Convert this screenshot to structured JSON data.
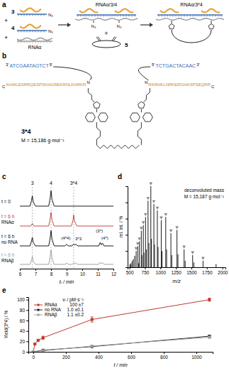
{
  "scheme": {
    "label": "a",
    "strand_3": "3",
    "strand_4": "4",
    "azide": "N₃",
    "plus": "+",
    "rna": "RNAα",
    "complex": "RNAα/3/4",
    "product": "RNAα/3*4",
    "crosslinker": "5"
  },
  "structure": {
    "label": "b",
    "dna_left": {
      "end_start": "3'",
      "sequence": "ATCGAATAGTCT",
      "end_stop": "5'"
    },
    "dna_right": {
      "end_start": "5'",
      "sequence": "TCTGACTACAAC",
      "end_stop": "3'"
    },
    "peptide_left": {
      "terminus_start": "C",
      "sequence": "AHWLESRRQESPSKHGREKRNLKHRKR",
      "terminus_stop": "N"
    },
    "peptide_right": {
      "terminus_start": "N",
      "sequence": "RKRHKLNRKERGHKSPSEQRR",
      "terminus_stop": "C"
    },
    "compound": "3*4",
    "mass": "M = 15,186 g·mol⁻¹"
  },
  "chart_data": [
    {
      "type": "line",
      "panel": "c",
      "x_label": "tᵣ / min",
      "xlim": [
        6,
        12
      ],
      "xticks": [
        6,
        7,
        8,
        9,
        10,
        11,
        12
      ],
      "ylim": [
        0,
        1
      ],
      "tick_labels": "x",
      "peak_markers": [
        {
          "value": 6.8,
          "label": "3"
        },
        {
          "value": 8,
          "label": "4"
        },
        {
          "value": 9.45,
          "label": "3*4"
        }
      ],
      "series": [
        {
          "name": "t = 0",
          "color": "#000000",
          "x": [
            6,
            6.65,
            6.74,
            6.8,
            6.86,
            7.0,
            7.85,
            7.94,
            8.0,
            8.06,
            8.2,
            12
          ],
          "values": [
            0,
            0,
            0.3,
            0.6,
            0.25,
            0,
            0,
            0.45,
            0.9,
            0.4,
            0,
            0
          ]
        },
        {
          "name": "t = 6 h",
          "condition": "RNAα",
          "color": "#c0392b",
          "x": [
            6,
            6.7,
            6.8,
            6.9,
            7.85,
            7.94,
            8.0,
            8.06,
            8.2,
            9.3,
            9.4,
            9.45,
            9.5,
            9.65,
            12
          ],
          "values": [
            0,
            0,
            0.15,
            0,
            0,
            0.4,
            0.8,
            0.35,
            0,
            0,
            0.3,
            0.65,
            0.3,
            0,
            0
          ]
        },
        {
          "name": "t = 6 h",
          "condition": "no RNA",
          "color": "#000000",
          "x": [
            6,
            6.65,
            6.74,
            6.8,
            6.86,
            7.0,
            7.85,
            7.94,
            8.0,
            8.06,
            8.2,
            8.9,
            9.0,
            9.1,
            9.35,
            9.45,
            9.52,
            9.6,
            9.7,
            11.05,
            11.15,
            11.22,
            11.3,
            11.4,
            12
          ],
          "values": [
            0,
            0,
            0.25,
            0.5,
            0.2,
            0,
            0,
            0.45,
            0.9,
            0.4,
            0,
            0,
            0.1,
            0,
            0,
            0.12,
            0.05,
            0.1,
            0,
            0,
            0.2,
            0.06,
            0.16,
            0,
            0
          ],
          "annotations": [
            {
              "x": 8.95,
              "y": 0.35,
              "text": "(4*4)"
            },
            {
              "x": 9.75,
              "y": 0.3,
              "text": "3*3"
            },
            {
              "x": 11.1,
              "y": 0.75,
              "text": "(3*)"
            },
            {
              "x": 11.45,
              "y": 0.35,
              "text": "(4*)"
            }
          ]
        },
        {
          "name": "t = 6 h",
          "condition": "RNAβ",
          "color": "#999999",
          "x": [
            6,
            6.65,
            6.74,
            6.8,
            6.86,
            7.0,
            7.85,
            7.94,
            8.0,
            8.06,
            8.2,
            8.9,
            9.0,
            9.1,
            9.35,
            9.45,
            9.52,
            9.6,
            9.7,
            11.05,
            11.15,
            11.22,
            11.3,
            11.4,
            12
          ],
          "values": [
            0,
            0,
            0.22,
            0.45,
            0.18,
            0,
            0,
            0.42,
            0.85,
            0.38,
            0,
            0,
            0.08,
            0,
            0,
            0.1,
            0.04,
            0.08,
            0,
            0,
            0.12,
            0.04,
            0.1,
            0,
            0
          ]
        }
      ]
    },
    {
      "type": "bar",
      "panel": "d",
      "x_label": "m/z",
      "y_label": "rel. int. / %",
      "xlim": [
        470,
        2050
      ],
      "xticks": [
        500,
        750,
        1000,
        1250,
        1500,
        1750,
        2000
      ],
      "ylim": [
        0,
        100
      ],
      "yticks": [
        0,
        20,
        40,
        60,
        80,
        100
      ],
      "tick_labels": "x",
      "color": "#000000",
      "annotations": [
        "deconvoluted mass",
        "M = 15,187 g·mol⁻¹"
      ],
      "x": [
        507,
        520,
        525,
        543,
        563,
        585,
        608,
        634,
        650,
        661,
        691,
        701,
        724,
        735,
        760,
        772,
        800,
        814,
        845,
        855,
        894,
        905,
        950,
        962,
        1013,
        1026,
        1086,
        1100,
        1169,
        1183,
        1267,
        1283,
        1382,
        1400,
        1520,
        1540,
        1688,
        1899
      ],
      "values": [
        4,
        2,
        5,
        8,
        10,
        14,
        20,
        26,
        5,
        32,
        45,
        15,
        52,
        18,
        62,
        22,
        82,
        30,
        100,
        35,
        78,
        28,
        70,
        25,
        58,
        20,
        62,
        22,
        42,
        15,
        46,
        16,
        22,
        8,
        15,
        6,
        8,
        4
      ],
      "charge_states": {
        "marker": "triangle",
        "color": "#888888",
        "x": [
          608,
          634,
          661,
          691,
          724,
          760,
          800,
          845,
          894,
          950,
          1013,
          1086,
          1169,
          1267,
          1382,
          1520,
          1688
        ],
        "values": [
          20,
          26,
          32,
          45,
          52,
          62,
          82,
          100,
          78,
          70,
          58,
          62,
          42,
          46,
          22,
          15,
          8
        ]
      }
    },
    {
      "type": "line",
      "panel": "e",
      "x_label": "t / min",
      "y_label": "Yield(3*4) / %",
      "xlim": [
        -30,
        1100
      ],
      "xticks": [
        0,
        200,
        400,
        600,
        800,
        1000
      ],
      "ylim": [
        0,
        105
      ],
      "yticks": [
        0,
        20,
        40,
        60,
        80,
        100
      ],
      "marker": "square",
      "legend": "top-left",
      "legend_title": "vᵢ / pM·s⁻¹",
      "series": [
        {
          "name": "RNAα",
          "color": "#c0392b",
          "rate": "100 ±7",
          "x": [
            0,
            10,
            30,
            60,
            360,
            1080
          ],
          "values": [
            0,
            15,
            22,
            27,
            62,
            100
          ],
          "errors": [
            0,
            2,
            2,
            3,
            5,
            3
          ]
        },
        {
          "name": "no RNA",
          "color": "#222222",
          "rate": "1.0 ±0.1",
          "x": [
            0,
            60,
            360,
            1080
          ],
          "values": [
            0,
            3,
            10,
            30
          ],
          "errors": [
            0,
            1,
            1,
            2
          ]
        },
        {
          "name": "RNAβ",
          "color": "#9e9e9e",
          "rate": "1.1 ±0.2",
          "x": [
            0,
            60,
            360,
            1080
          ],
          "values": [
            0,
            2,
            11,
            28
          ],
          "errors": [
            0,
            1,
            1,
            2
          ]
        }
      ]
    }
  ]
}
